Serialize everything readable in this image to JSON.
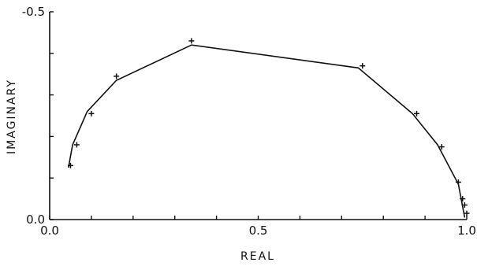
{
  "chart_data": {
    "type": "line",
    "xlabel": "REAL",
    "ylabel": "IMAGINARY",
    "xlim": [
      0.0,
      1.0
    ],
    "ylim": [
      0.0,
      -0.5
    ],
    "y_axis_inverted": true,
    "grid": false,
    "x_tick_labels": [
      "0.0",
      "0.5",
      "1.0"
    ],
    "y_tick_labels": [
      "0.0",
      "-0.5"
    ],
    "x_ticks": [
      0.0,
      0.1,
      0.2,
      0.3,
      0.4,
      0.5,
      0.6,
      0.7,
      0.8,
      0.9,
      1.0
    ],
    "y_ticks": [
      0.0,
      -0.1,
      -0.2,
      -0.3,
      -0.4,
      -0.5
    ],
    "series": [
      {
        "kind": "line",
        "x": [
          0.045,
          0.055,
          0.09,
          0.16,
          0.34,
          0.74,
          0.87,
          0.93,
          0.98,
          0.995
        ],
        "y": [
          -0.125,
          -0.18,
          -0.26,
          -0.335,
          -0.42,
          -0.365,
          -0.255,
          -0.18,
          -0.085,
          -0.005
        ]
      },
      {
        "kind": "markers",
        "marker": "+",
        "x": [
          0.05,
          0.065,
          0.1,
          0.16,
          0.34,
          0.75,
          0.88,
          0.94,
          0.98,
          0.99,
          0.995,
          1.0
        ],
        "y": [
          -0.13,
          -0.18,
          -0.255,
          -0.345,
          -0.43,
          -0.37,
          -0.255,
          -0.175,
          -0.09,
          -0.05,
          -0.035,
          -0.015
        ]
      }
    ]
  }
}
